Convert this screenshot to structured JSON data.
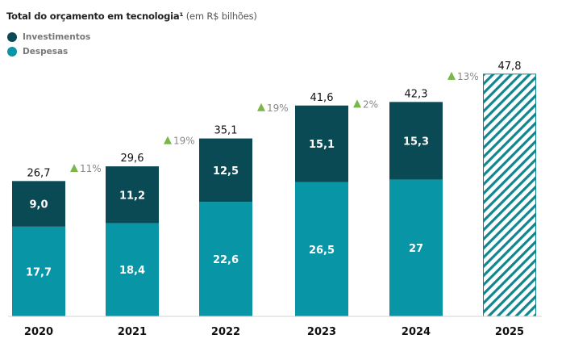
{
  "chart_data": {
    "type": "bar",
    "stacked": true,
    "title": "Total do orçamento em tecnologia¹",
    "subtitle": "(em R$ bilhões)",
    "xlabel": "",
    "ylabel": "",
    "categories": [
      "2020",
      "2021",
      "2022",
      "2023",
      "2024",
      "2025"
    ],
    "series": [
      {
        "name": "Despesas",
        "color": "#0895a5",
        "values": [
          17.7,
          18.4,
          22.6,
          26.5,
          27,
          null
        ],
        "labels": [
          "17,7",
          "18,4",
          "22,6",
          "26,5",
          "27",
          ""
        ]
      },
      {
        "name": "Investimentos",
        "color": "#0a4a55",
        "values": [
          9.0,
          11.2,
          12.5,
          15.1,
          15.3,
          null
        ],
        "labels": [
          "9,0",
          "11,2",
          "12,5",
          "15,1",
          "15,3",
          ""
        ]
      }
    ],
    "totals": [
      26.7,
      29.6,
      35.1,
      41.6,
      42.3,
      47.8
    ],
    "total_labels": [
      "26,7",
      "29,6",
      "35,1",
      "41,6",
      "42,3",
      "47,8"
    ],
    "forecast_category": "2025",
    "growth_annotations": [
      "11%",
      "19%",
      "19%",
      "2%",
      "13%"
    ],
    "growth_color": "#7ab648",
    "ylim": [
      0,
      50
    ],
    "grid": false,
    "legend_position": "top-left"
  }
}
